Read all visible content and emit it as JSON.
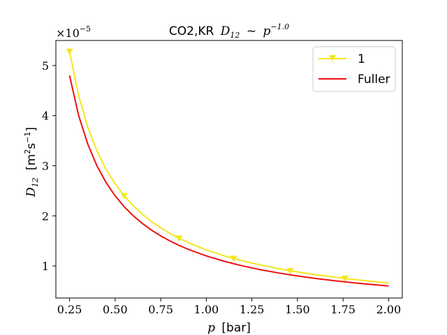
{
  "chart_data": {
    "type": "line",
    "title": {
      "prefix": "CO2,KR",
      "symbol": "D",
      "symbol_sub": "12",
      "relation": "∼",
      "base": "p",
      "exponent": "−1.0"
    },
    "xlabel": {
      "symbol": "p",
      "unit": "[bar]"
    },
    "ylabel": {
      "symbol": "D",
      "symbol_sub": "12",
      "unit_pre": "[m",
      "unit_sup1": "2",
      "unit_mid": "s",
      "unit_sup2": "−1",
      "unit_post": "]"
    },
    "offset_text": {
      "base": "×10",
      "exp": "−5"
    },
    "xlim": [
      0.175,
      2.075
    ],
    "ylim": [
      0.36,
      5.5
    ],
    "xticks": [
      0.25,
      0.5,
      0.75,
      1.0,
      1.25,
      1.5,
      1.75,
      2.0
    ],
    "xtick_labels": [
      "0.25",
      "0.50",
      "0.75",
      "1.00",
      "1.25",
      "1.50",
      "1.75",
      "2.00"
    ],
    "yticks": [
      1,
      2,
      3,
      4,
      5
    ],
    "ytick_labels": [
      "1",
      "2",
      "3",
      "4",
      "5"
    ],
    "legend_placement": "top-right",
    "series": [
      {
        "name": "1",
        "color": "#f5e61e",
        "marker": "triangle-down",
        "x": [
          0.25,
          0.3,
          0.35,
          0.4,
          0.45,
          0.5,
          0.55,
          0.6,
          0.65,
          0.7,
          0.75,
          0.8,
          0.85,
          0.9,
          1.0,
          1.1,
          1.15,
          1.25,
          1.4,
          1.46,
          1.6,
          1.76,
          1.9,
          2.0
        ],
        "y": [
          5.28,
          4.4,
          3.77,
          3.3,
          2.93,
          2.64,
          2.4,
          2.2,
          2.03,
          1.885,
          1.76,
          1.65,
          1.553,
          1.467,
          1.32,
          1.2,
          1.148,
          1.056,
          0.943,
          0.904,
          0.825,
          0.75,
          0.695,
          0.66
        ],
        "marker_x": [
          0.25,
          0.55,
          0.85,
          1.15,
          1.46,
          1.76
        ]
      },
      {
        "name": "Fuller",
        "color": "#ee1111",
        "marker": "none",
        "x": [
          0.25,
          0.3,
          0.35,
          0.4,
          0.45,
          0.5,
          0.55,
          0.6,
          0.65,
          0.7,
          0.75,
          0.8,
          0.85,
          0.9,
          1.0,
          1.1,
          1.2,
          1.3,
          1.4,
          1.5,
          1.6,
          1.7,
          1.8,
          1.9,
          2.0
        ],
        "y": [
          4.8,
          4.0,
          3.43,
          3.0,
          2.667,
          2.4,
          2.18,
          2.0,
          1.846,
          1.714,
          1.6,
          1.5,
          1.412,
          1.333,
          1.2,
          1.091,
          1.0,
          0.923,
          0.857,
          0.8,
          0.75,
          0.706,
          0.667,
          0.632,
          0.6
        ]
      }
    ]
  }
}
